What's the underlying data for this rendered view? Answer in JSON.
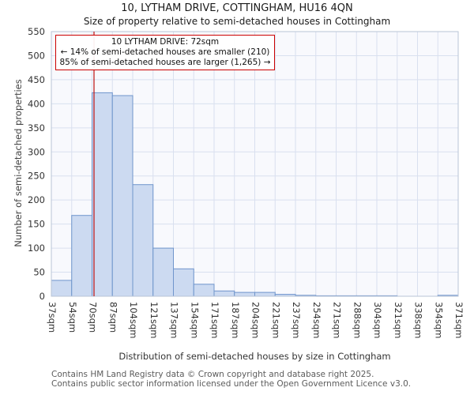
{
  "chart_data": {
    "type": "bar",
    "title": "10, LYTHAM DRIVE, COTTINGHAM, HU16 4QN",
    "subtitle": "Size of property relative to semi-detached houses in Cottingham",
    "xlabel": "Distribution of semi-detached houses by size in Cottingham",
    "ylabel": "Number of semi-detached properties",
    "categories": [
      "37sqm",
      "54sqm",
      "70sqm",
      "87sqm",
      "104sqm",
      "121sqm",
      "137sqm",
      "154sqm",
      "171sqm",
      "187sqm",
      "204sqm",
      "221sqm",
      "237sqm",
      "254sqm",
      "271sqm",
      "288sqm",
      "304sqm",
      "321sqm",
      "338sqm",
      "354sqm",
      "371sqm"
    ],
    "values": [
      33,
      168,
      423,
      417,
      232,
      100,
      57,
      25,
      11,
      8,
      8,
      4,
      2,
      1,
      1,
      1,
      1,
      0,
      0,
      2
    ],
    "ylim": [
      0,
      550
    ],
    "ytick_step": 50,
    "x_range": [
      37,
      371
    ],
    "grid": true,
    "legend": false,
    "marker": {
      "value": 72
    },
    "annotation": {
      "line1": "10 LYTHAM DRIVE: 72sqm",
      "line2": "← 14% of semi-detached houses are smaller (210)",
      "line3": "85% of semi-detached houses are larger (1,265) →"
    },
    "colors": {
      "bar_fill": "#ccdaf1",
      "bar_stroke": "#6f95cc",
      "grid": "#d9e0ef",
      "plot_bg": "#f8f9fd",
      "frame": "#b9c4d6",
      "marker": "#bb1111",
      "annotation_border": "#cc0000"
    }
  },
  "footer": {
    "line1": "Contains HM Land Registry data © Crown copyright and database right 2025.",
    "line2": "Contains public sector information licensed under the Open Government Licence v3.0."
  }
}
